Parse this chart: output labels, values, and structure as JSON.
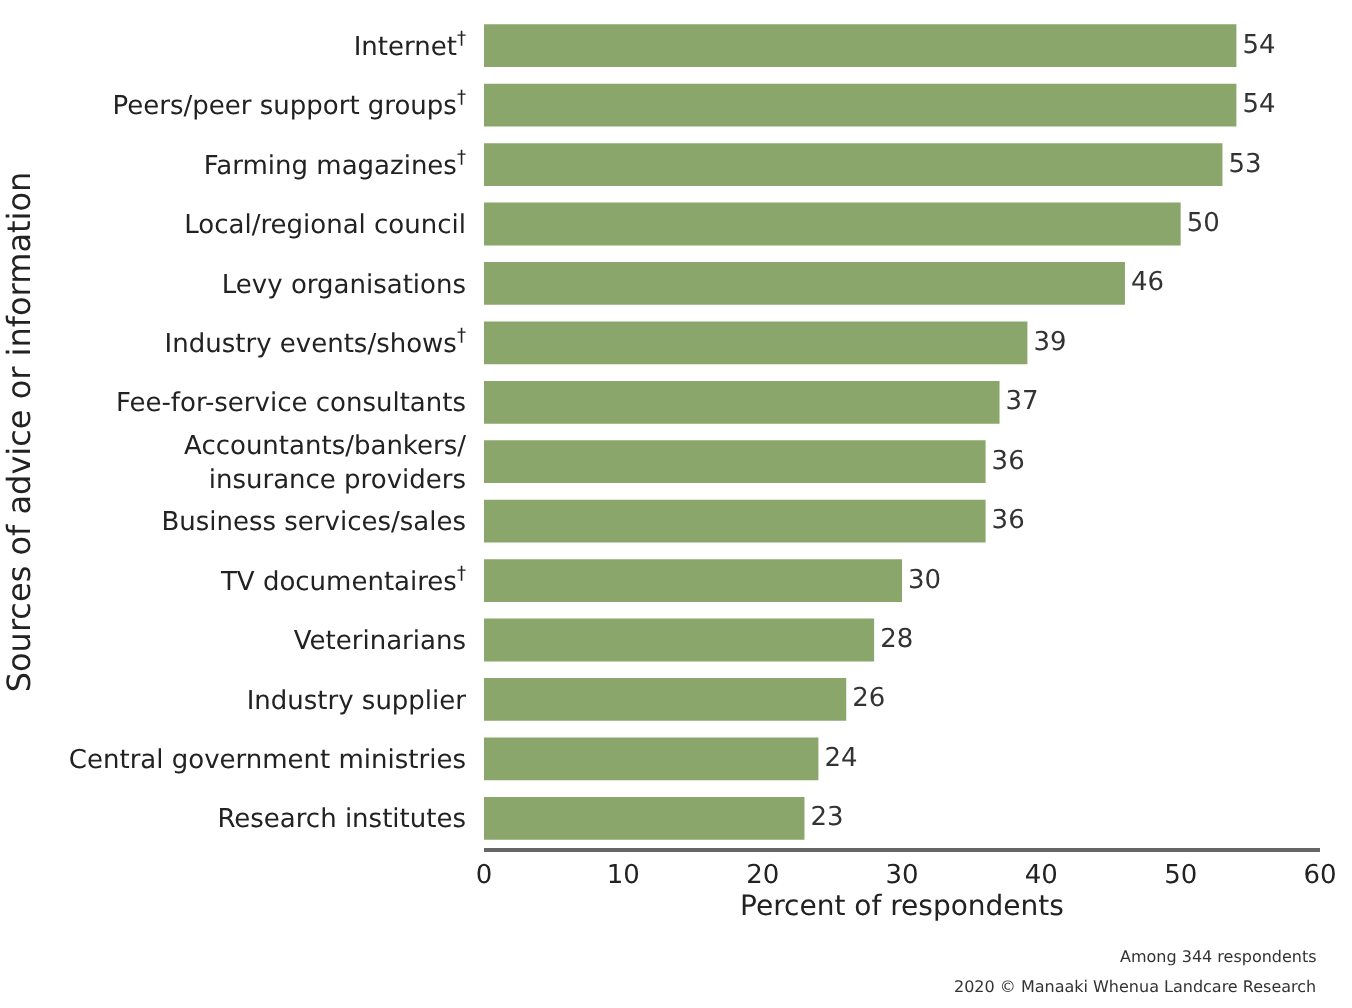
{
  "chart_data": {
    "type": "bar",
    "orientation": "horizontal",
    "xlabel": "Percent of respondents",
    "ylabel": "Sources of advice or information",
    "categories": [
      "Internet$^{†}$",
      "Peers/peer support groups$^{†}$",
      "Farming magazines$^{†}$",
      "Local/regional council",
      "Levy organisations",
      "Industry events/shows$^{†}$",
      "Fee-for-service consultants",
      "Accountants/bankers/\ninsurance providers",
      "Business services/sales",
      "TV documentaires$^{†}$",
      "Veterinarians",
      "Industry supplier",
      "Central government ministries",
      "Research institutes"
    ],
    "values": [
      54,
      54,
      53,
      50,
      46,
      39,
      37,
      36,
      36,
      30,
      28,
      26,
      24,
      23
    ],
    "color": "#8aa66a",
    "data_labels": true,
    "xlim": [
      0,
      60
    ],
    "xticks": [
      0,
      10,
      20,
      30,
      40,
      50,
      60
    ],
    "legend": false,
    "annotations": [
      "Among 344 respondents",
      "2020 © Manaaki Whenua Landcare Research"
    ]
  }
}
